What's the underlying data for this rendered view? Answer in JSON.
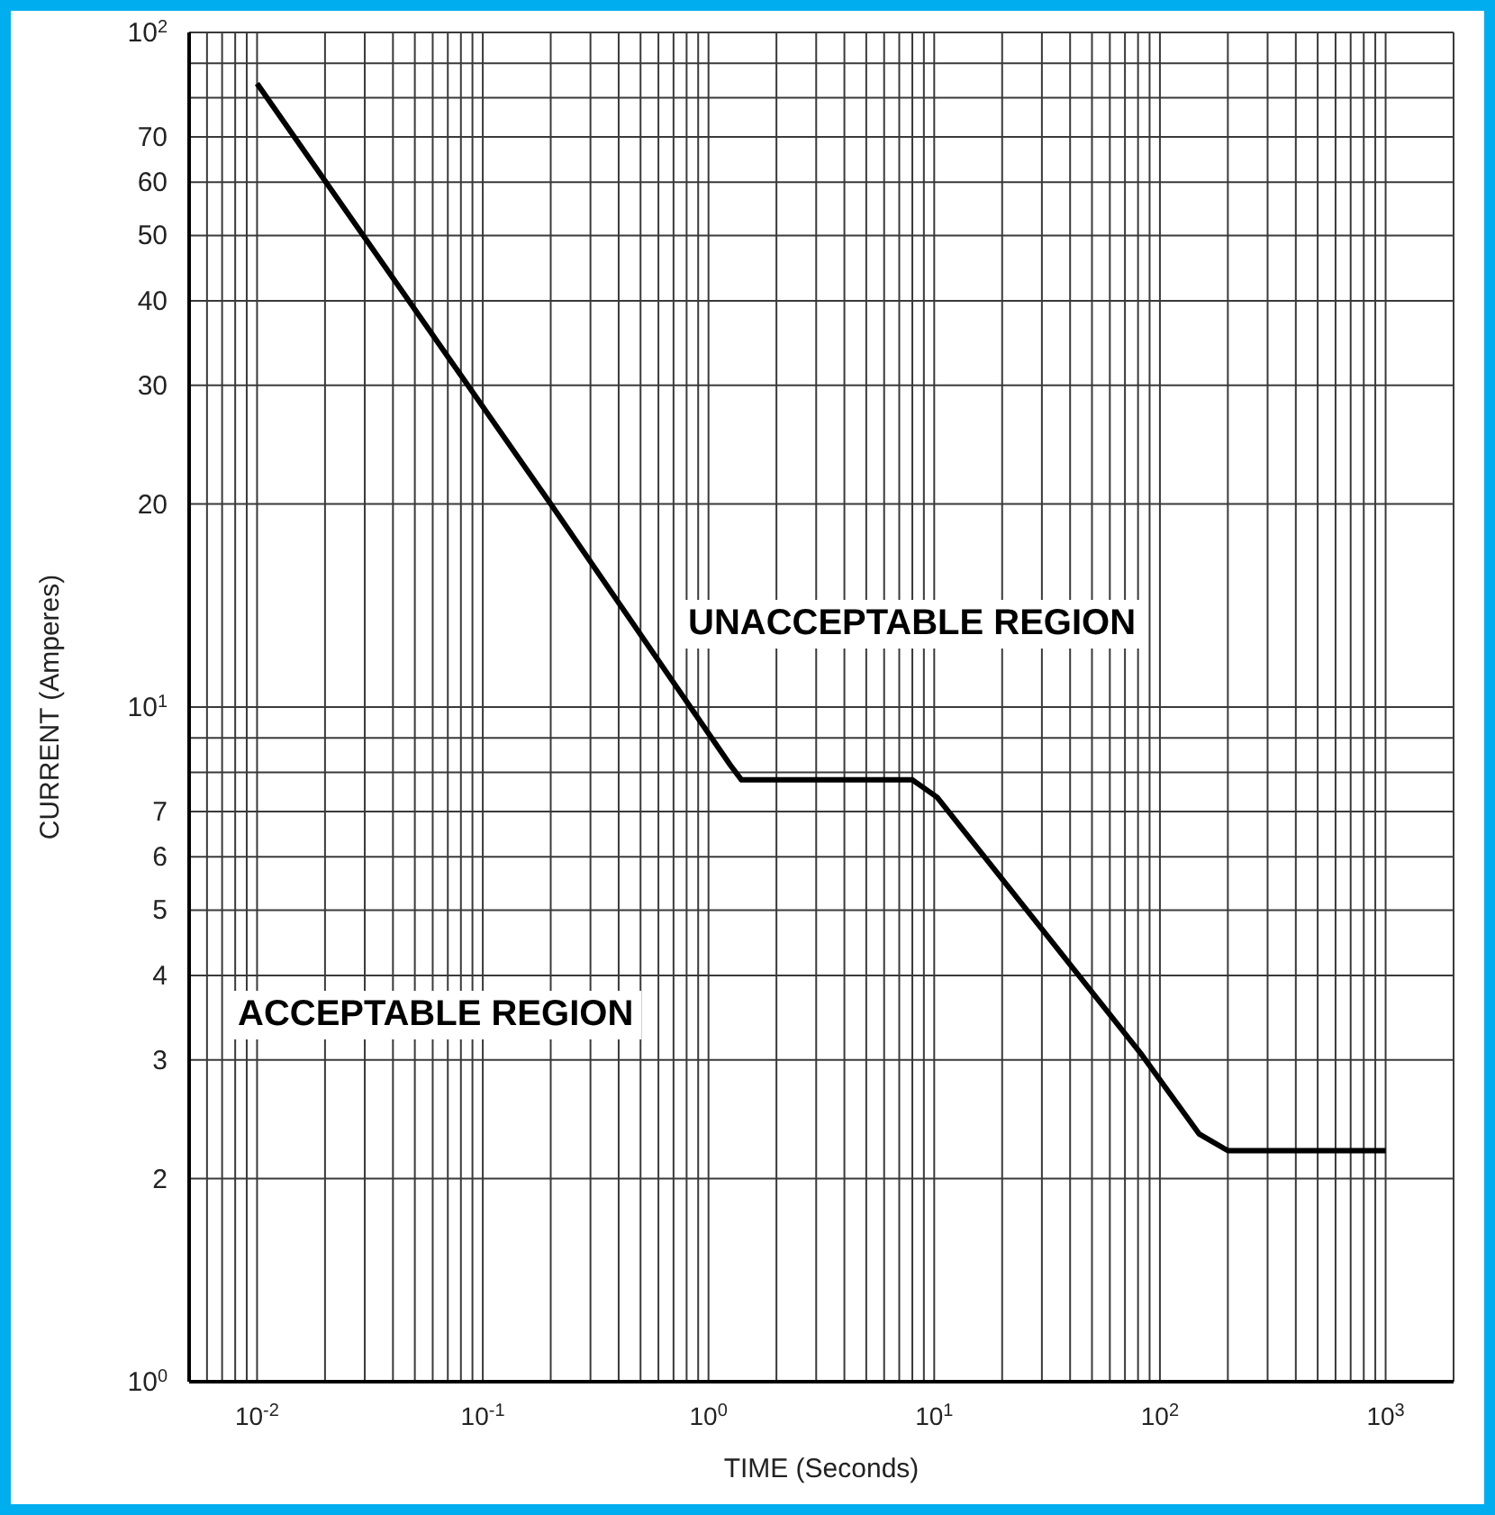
{
  "chart_data": {
    "type": "line",
    "xlabel": "TIME (Seconds)",
    "ylabel": "CURRENT (Amperes)",
    "log": "xy",
    "grid": true,
    "xlim": [
      0.005,
      2000
    ],
    "ylim": [
      1,
      100
    ],
    "xticks": [
      {
        "value": 0.005,
        "label": null
      },
      {
        "value": 0.006,
        "label": null
      },
      {
        "value": 0.007,
        "label": null
      },
      {
        "value": 0.008,
        "label": null
      },
      {
        "value": 0.009,
        "label": null
      },
      {
        "value": 0.01,
        "label": "10$^{-2}$"
      },
      {
        "value": 0.02,
        "label": null
      },
      {
        "value": 0.03,
        "label": null
      },
      {
        "value": 0.04,
        "label": null
      },
      {
        "value": 0.05,
        "label": null
      },
      {
        "value": 0.06,
        "label": null
      },
      {
        "value": 0.07,
        "label": null
      },
      {
        "value": 0.08,
        "label": null
      },
      {
        "value": 0.09,
        "label": null
      },
      {
        "value": 0.1,
        "label": "10$^{-1}$"
      },
      {
        "value": 0.2,
        "label": null
      },
      {
        "value": 0.3,
        "label": null
      },
      {
        "value": 0.4,
        "label": null
      },
      {
        "value": 0.5,
        "label": null
      },
      {
        "value": 0.6,
        "label": null
      },
      {
        "value": 0.7,
        "label": null
      },
      {
        "value": 0.8,
        "label": null
      },
      {
        "value": 0.9,
        "label": null
      },
      {
        "value": 1,
        "label": "10$^{0}$"
      },
      {
        "value": 2,
        "label": null
      },
      {
        "value": 3,
        "label": null
      },
      {
        "value": 4,
        "label": null
      },
      {
        "value": 5,
        "label": null
      },
      {
        "value": 6,
        "label": null
      },
      {
        "value": 7,
        "label": null
      },
      {
        "value": 8,
        "label": null
      },
      {
        "value": 9,
        "label": null
      },
      {
        "value": 10,
        "label": "10$^{1}$"
      },
      {
        "value": 20,
        "label": null
      },
      {
        "value": 30,
        "label": null
      },
      {
        "value": 40,
        "label": null
      },
      {
        "value": 50,
        "label": null
      },
      {
        "value": 60,
        "label": null
      },
      {
        "value": 70,
        "label": null
      },
      {
        "value": 80,
        "label": null
      },
      {
        "value": 90,
        "label": null
      },
      {
        "value": 100,
        "label": "10$^{2}$"
      },
      {
        "value": 200,
        "label": null
      },
      {
        "value": 300,
        "label": null
      },
      {
        "value": 400,
        "label": null
      },
      {
        "value": 500,
        "label": null
      },
      {
        "value": 600,
        "label": null
      },
      {
        "value": 700,
        "label": null
      },
      {
        "value": 800,
        "label": null
      },
      {
        "value": 900,
        "label": null
      },
      {
        "value": 1000,
        "label": "10$^{3}$"
      },
      {
        "value": 2000,
        "label": null
      }
    ],
    "yticks": [
      {
        "value": 1,
        "label": "10$^{0}$"
      },
      2,
      3,
      4,
      5,
      6,
      7,
      {
        "value": 8,
        "label": null
      },
      {
        "value": 9,
        "label": null
      },
      {
        "value": 10,
        "label": "10$^{1}$"
      },
      20,
      30,
      40,
      50,
      60,
      70,
      {
        "value": 80,
        "label": null
      },
      {
        "value": 90,
        "label": null
      },
      {
        "value": 100,
        "label": "10$^{2}$"
      }
    ],
    "x": [
      0.01,
      0.2,
      1.25,
      1.4,
      8,
      10.3,
      82,
      149,
      200,
      1000
    ],
    "series": [
      {
        "color": "#000000",
        "values": [
          84,
          20,
          8.2,
          7.8,
          7.8,
          7.35,
          3.07,
          2.33,
          2.2,
          2.2
        ]
      }
    ],
    "annotations": [
      "UNACCEPTABLE REGION",
      "ACCEPTABLE REGION"
    ]
  }
}
